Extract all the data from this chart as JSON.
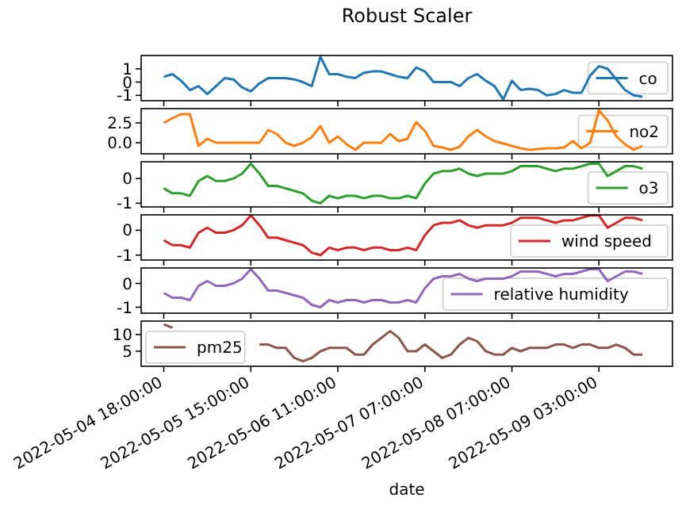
{
  "chart_data": [
    {
      "type": "line",
      "title": "Robust Scaler",
      "categories": [
        "2022-05-04 18:00:00",
        null,
        null,
        null,
        null,
        null,
        null,
        null,
        null,
        null,
        "2022-05-05 15:00:00",
        null,
        null,
        null,
        null,
        null,
        null,
        null,
        null,
        null,
        "2022-05-06 11:00:00",
        null,
        null,
        null,
        null,
        null,
        null,
        null,
        null,
        null,
        "2022-05-07 07:00:00",
        null,
        null,
        null,
        null,
        null,
        null,
        null,
        null,
        null,
        "2022-05-08 07:00:00",
        null,
        null,
        null,
        null,
        null,
        null,
        null,
        null,
        null,
        "2022-05-09 03:00:00",
        null,
        null,
        null,
        null,
        null
      ],
      "series": [
        {
          "name": "co",
          "color": "#1f77b4",
          "values": [
            0.4,
            0.6,
            0.1,
            -0.6,
            -0.3,
            -0.9,
            -0.3,
            0.3,
            0.2,
            -0.4,
            -0.7,
            -0.1,
            0.3,
            0.3,
            0.3,
            0.2,
            0,
            -0.3,
            1.9,
            0.6,
            0.6,
            0.4,
            0.3,
            0.7,
            0.8,
            0.8,
            0.6,
            0.4,
            0.3,
            1.1,
            0.8,
            0,
            0,
            0,
            -0.3,
            0.3,
            0.6,
            0.1,
            -0.3,
            -1.3,
            0.1,
            -0.6,
            -0.5,
            -0.6,
            -1.0,
            -0.9,
            -0.6,
            -0.8,
            -0.8,
            0.5,
            1.2,
            1.0,
            0.2,
            -0.6,
            -1.0,
            -1.1
          ]
        }
      ],
      "ylim": [
        -1.4,
        2.0
      ],
      "yticks": [
        -1,
        0,
        1
      ],
      "legend": "right",
      "tick_labels": "y"
    },
    {
      "type": "line",
      "categories": [
        "2022-05-04 18:00:00",
        null,
        null,
        null,
        null,
        null,
        null,
        null,
        null,
        null,
        "2022-05-05 15:00:00",
        null,
        null,
        null,
        null,
        null,
        null,
        null,
        null,
        null,
        "2022-05-06 11:00:00",
        null,
        null,
        null,
        null,
        null,
        null,
        null,
        null,
        null,
        "2022-05-07 07:00:00",
        null,
        null,
        null,
        null,
        null,
        null,
        null,
        null,
        null,
        "2022-05-08 07:00:00",
        null,
        null,
        null,
        null,
        null,
        null,
        null,
        null,
        null,
        "2022-05-09 03:00:00",
        null,
        null,
        null,
        null,
        null
      ],
      "series": [
        {
          "name": "no2",
          "color": "#ff7f0e",
          "values": [
            2.5,
            3.1,
            3.6,
            3.6,
            -0.4,
            0.5,
            0,
            0,
            0,
            0,
            0,
            0,
            1.6,
            1.1,
            0,
            -0.4,
            0,
            0.7,
            2.1,
            0,
            0.8,
            -0.2,
            -0.9,
            0,
            0,
            0,
            1.1,
            0.2,
            0.5,
            2.6,
            1.5,
            -0.4,
            -0.6,
            -0.9,
            -0.5,
            0.8,
            1.6,
            0.8,
            0.2,
            -0.1,
            -0.4,
            -0.7,
            -0.9,
            -0.8,
            -0.7,
            -0.7,
            -0.6,
            0.2,
            -0.7,
            0,
            4.1,
            2.8,
            0.8,
            -0.2,
            -0.9,
            -0.4
          ]
        }
      ],
      "ylim": [
        -1.4,
        4.3
      ],
      "yticks": [
        {
          "value": 0,
          "label": "0.0"
        },
        {
          "value": 2.5,
          "label": "2.5"
        }
      ],
      "legend": "right",
      "tick_labels": "y"
    },
    {
      "type": "line",
      "categories": [
        "2022-05-04 18:00:00",
        null,
        null,
        null,
        null,
        null,
        null,
        null,
        null,
        null,
        "2022-05-05 15:00:00",
        null,
        null,
        null,
        null,
        null,
        null,
        null,
        null,
        null,
        "2022-05-06 11:00:00",
        null,
        null,
        null,
        null,
        null,
        null,
        null,
        null,
        null,
        "2022-05-07 07:00:00",
        null,
        null,
        null,
        null,
        null,
        null,
        null,
        null,
        null,
        "2022-05-08 07:00:00",
        null,
        null,
        null,
        null,
        null,
        null,
        null,
        null,
        null,
        "2022-05-09 03:00:00",
        null,
        null,
        null,
        null,
        null
      ],
      "series": [
        {
          "name": "o3",
          "color": "#2ca02c",
          "values": [
            -0.4,
            -0.6,
            -0.6,
            -0.7,
            -0.1,
            0.1,
            -0.1,
            -0.1,
            0,
            0.2,
            0.6,
            0.2,
            -0.3,
            -0.3,
            -0.4,
            -0.5,
            -0.6,
            -0.9,
            -1.0,
            -0.7,
            -0.8,
            -0.7,
            -0.7,
            -0.8,
            -0.7,
            -0.7,
            -0.8,
            -0.8,
            -0.7,
            -0.8,
            -0.2,
            0.2,
            0.3,
            0.3,
            0.4,
            0.2,
            0.1,
            0.2,
            0.2,
            0.2,
            0.3,
            0.5,
            0.5,
            0.5,
            0.4,
            0.3,
            0.4,
            0.4,
            0.5,
            0.6,
            0.6,
            0.1,
            0.3,
            0.5,
            0.5,
            0.4
          ]
        }
      ],
      "ylim": [
        -1.15,
        0.68
      ],
      "yticks": [
        -1,
        0
      ],
      "legend": "lower right",
      "tick_labels": "y"
    },
    {
      "type": "line",
      "categories": [
        "2022-05-04 18:00:00",
        null,
        null,
        null,
        null,
        null,
        null,
        null,
        null,
        null,
        "2022-05-05 15:00:00",
        null,
        null,
        null,
        null,
        null,
        null,
        null,
        null,
        null,
        "2022-05-06 11:00:00",
        null,
        null,
        null,
        null,
        null,
        null,
        null,
        null,
        null,
        "2022-05-07 07:00:00",
        null,
        null,
        null,
        null,
        null,
        null,
        null,
        null,
        null,
        "2022-05-08 07:00:00",
        null,
        null,
        null,
        null,
        null,
        null,
        null,
        null,
        null,
        "2022-05-09 03:00:00",
        null,
        null,
        null,
        null,
        null
      ],
      "series": [
        {
          "name": "wind speed",
          "color": "#d62728",
          "values": [
            -0.4,
            -0.6,
            -0.6,
            -0.7,
            -0.1,
            0.1,
            -0.1,
            -0.1,
            0,
            0.2,
            0.6,
            0.2,
            -0.3,
            -0.3,
            -0.4,
            -0.5,
            -0.6,
            -0.9,
            -1.0,
            -0.7,
            -0.8,
            -0.7,
            -0.7,
            -0.8,
            -0.7,
            -0.7,
            -0.8,
            -0.8,
            -0.7,
            -0.8,
            -0.2,
            0.2,
            0.3,
            0.3,
            0.4,
            0.2,
            0.1,
            0.2,
            0.2,
            0.2,
            0.3,
            0.5,
            0.5,
            0.5,
            0.4,
            0.3,
            0.4,
            0.4,
            0.5,
            0.6,
            0.6,
            0.1,
            0.3,
            0.5,
            0.5,
            0.4
          ]
        }
      ],
      "ylim": [
        -1.2,
        0.62
      ],
      "yticks": [
        -1,
        0
      ],
      "legend": "lower right",
      "tick_labels": "y"
    },
    {
      "type": "line",
      "categories": [
        "2022-05-04 18:00:00",
        null,
        null,
        null,
        null,
        null,
        null,
        null,
        null,
        null,
        "2022-05-05 15:00:00",
        null,
        null,
        null,
        null,
        null,
        null,
        null,
        null,
        null,
        "2022-05-06 11:00:00",
        null,
        null,
        null,
        null,
        null,
        null,
        null,
        null,
        null,
        "2022-05-07 07:00:00",
        null,
        null,
        null,
        null,
        null,
        null,
        null,
        null,
        null,
        "2022-05-08 07:00:00",
        null,
        null,
        null,
        null,
        null,
        null,
        null,
        null,
        null,
        "2022-05-09 03:00:00",
        null,
        null,
        null,
        null,
        null
      ],
      "series": [
        {
          "name": "relative humidity",
          "color": "#9467bd",
          "values": [
            -0.4,
            -0.6,
            -0.6,
            -0.7,
            -0.1,
            0.1,
            -0.1,
            -0.1,
            0,
            0.2,
            0.6,
            0.2,
            -0.3,
            -0.3,
            -0.4,
            -0.5,
            -0.6,
            -0.9,
            -1.0,
            -0.7,
            -0.8,
            -0.7,
            -0.7,
            -0.8,
            -0.7,
            -0.7,
            -0.8,
            -0.8,
            -0.7,
            -0.8,
            -0.2,
            0.2,
            0.3,
            0.3,
            0.4,
            0.2,
            0.1,
            0.2,
            0.2,
            0.2,
            0.3,
            0.5,
            0.5,
            0.5,
            0.4,
            0.3,
            0.4,
            0.4,
            0.5,
            0.6,
            0.6,
            0.1,
            0.3,
            0.5,
            0.5,
            0.4
          ]
        }
      ],
      "ylim": [
        -1.25,
        0.65
      ],
      "yticks": [
        -1,
        0
      ],
      "legend": "lower right",
      "tick_labels": "y"
    },
    {
      "type": "line",
      "xlabel": "date",
      "categories": [
        "2022-05-04 18:00:00",
        null,
        null,
        null,
        null,
        null,
        null,
        null,
        null,
        null,
        "2022-05-05 15:00:00",
        null,
        null,
        null,
        null,
        null,
        null,
        null,
        null,
        null,
        "2022-05-06 11:00:00",
        null,
        null,
        null,
        null,
        null,
        null,
        null,
        null,
        null,
        "2022-05-07 07:00:00",
        null,
        null,
        null,
        null,
        null,
        null,
        null,
        null,
        null,
        "2022-05-08 07:00:00",
        null,
        null,
        null,
        null,
        null,
        null,
        null,
        null,
        null,
        "2022-05-09 03:00:00",
        null,
        null,
        null,
        null,
        null
      ],
      "series": [
        {
          "name": "pm25",
          "color": "#8c564b",
          "values": [
            13,
            12,
            null,
            null,
            null,
            null,
            null,
            null,
            null,
            null,
            null,
            7,
            7,
            6,
            6,
            3,
            2,
            3,
            5,
            6,
            6,
            6,
            4,
            4,
            7,
            9,
            11,
            9,
            5,
            5,
            7,
            5,
            3,
            4,
            7,
            9,
            8,
            5,
            4,
            4,
            6,
            5,
            6,
            6,
            6,
            7,
            7,
            6,
            7,
            7,
            6,
            6,
            7,
            6,
            4,
            4
          ]
        }
      ],
      "ylim": [
        0.5,
        14
      ],
      "yticks": [
        5,
        10
      ],
      "legend": "lower left"
    }
  ]
}
